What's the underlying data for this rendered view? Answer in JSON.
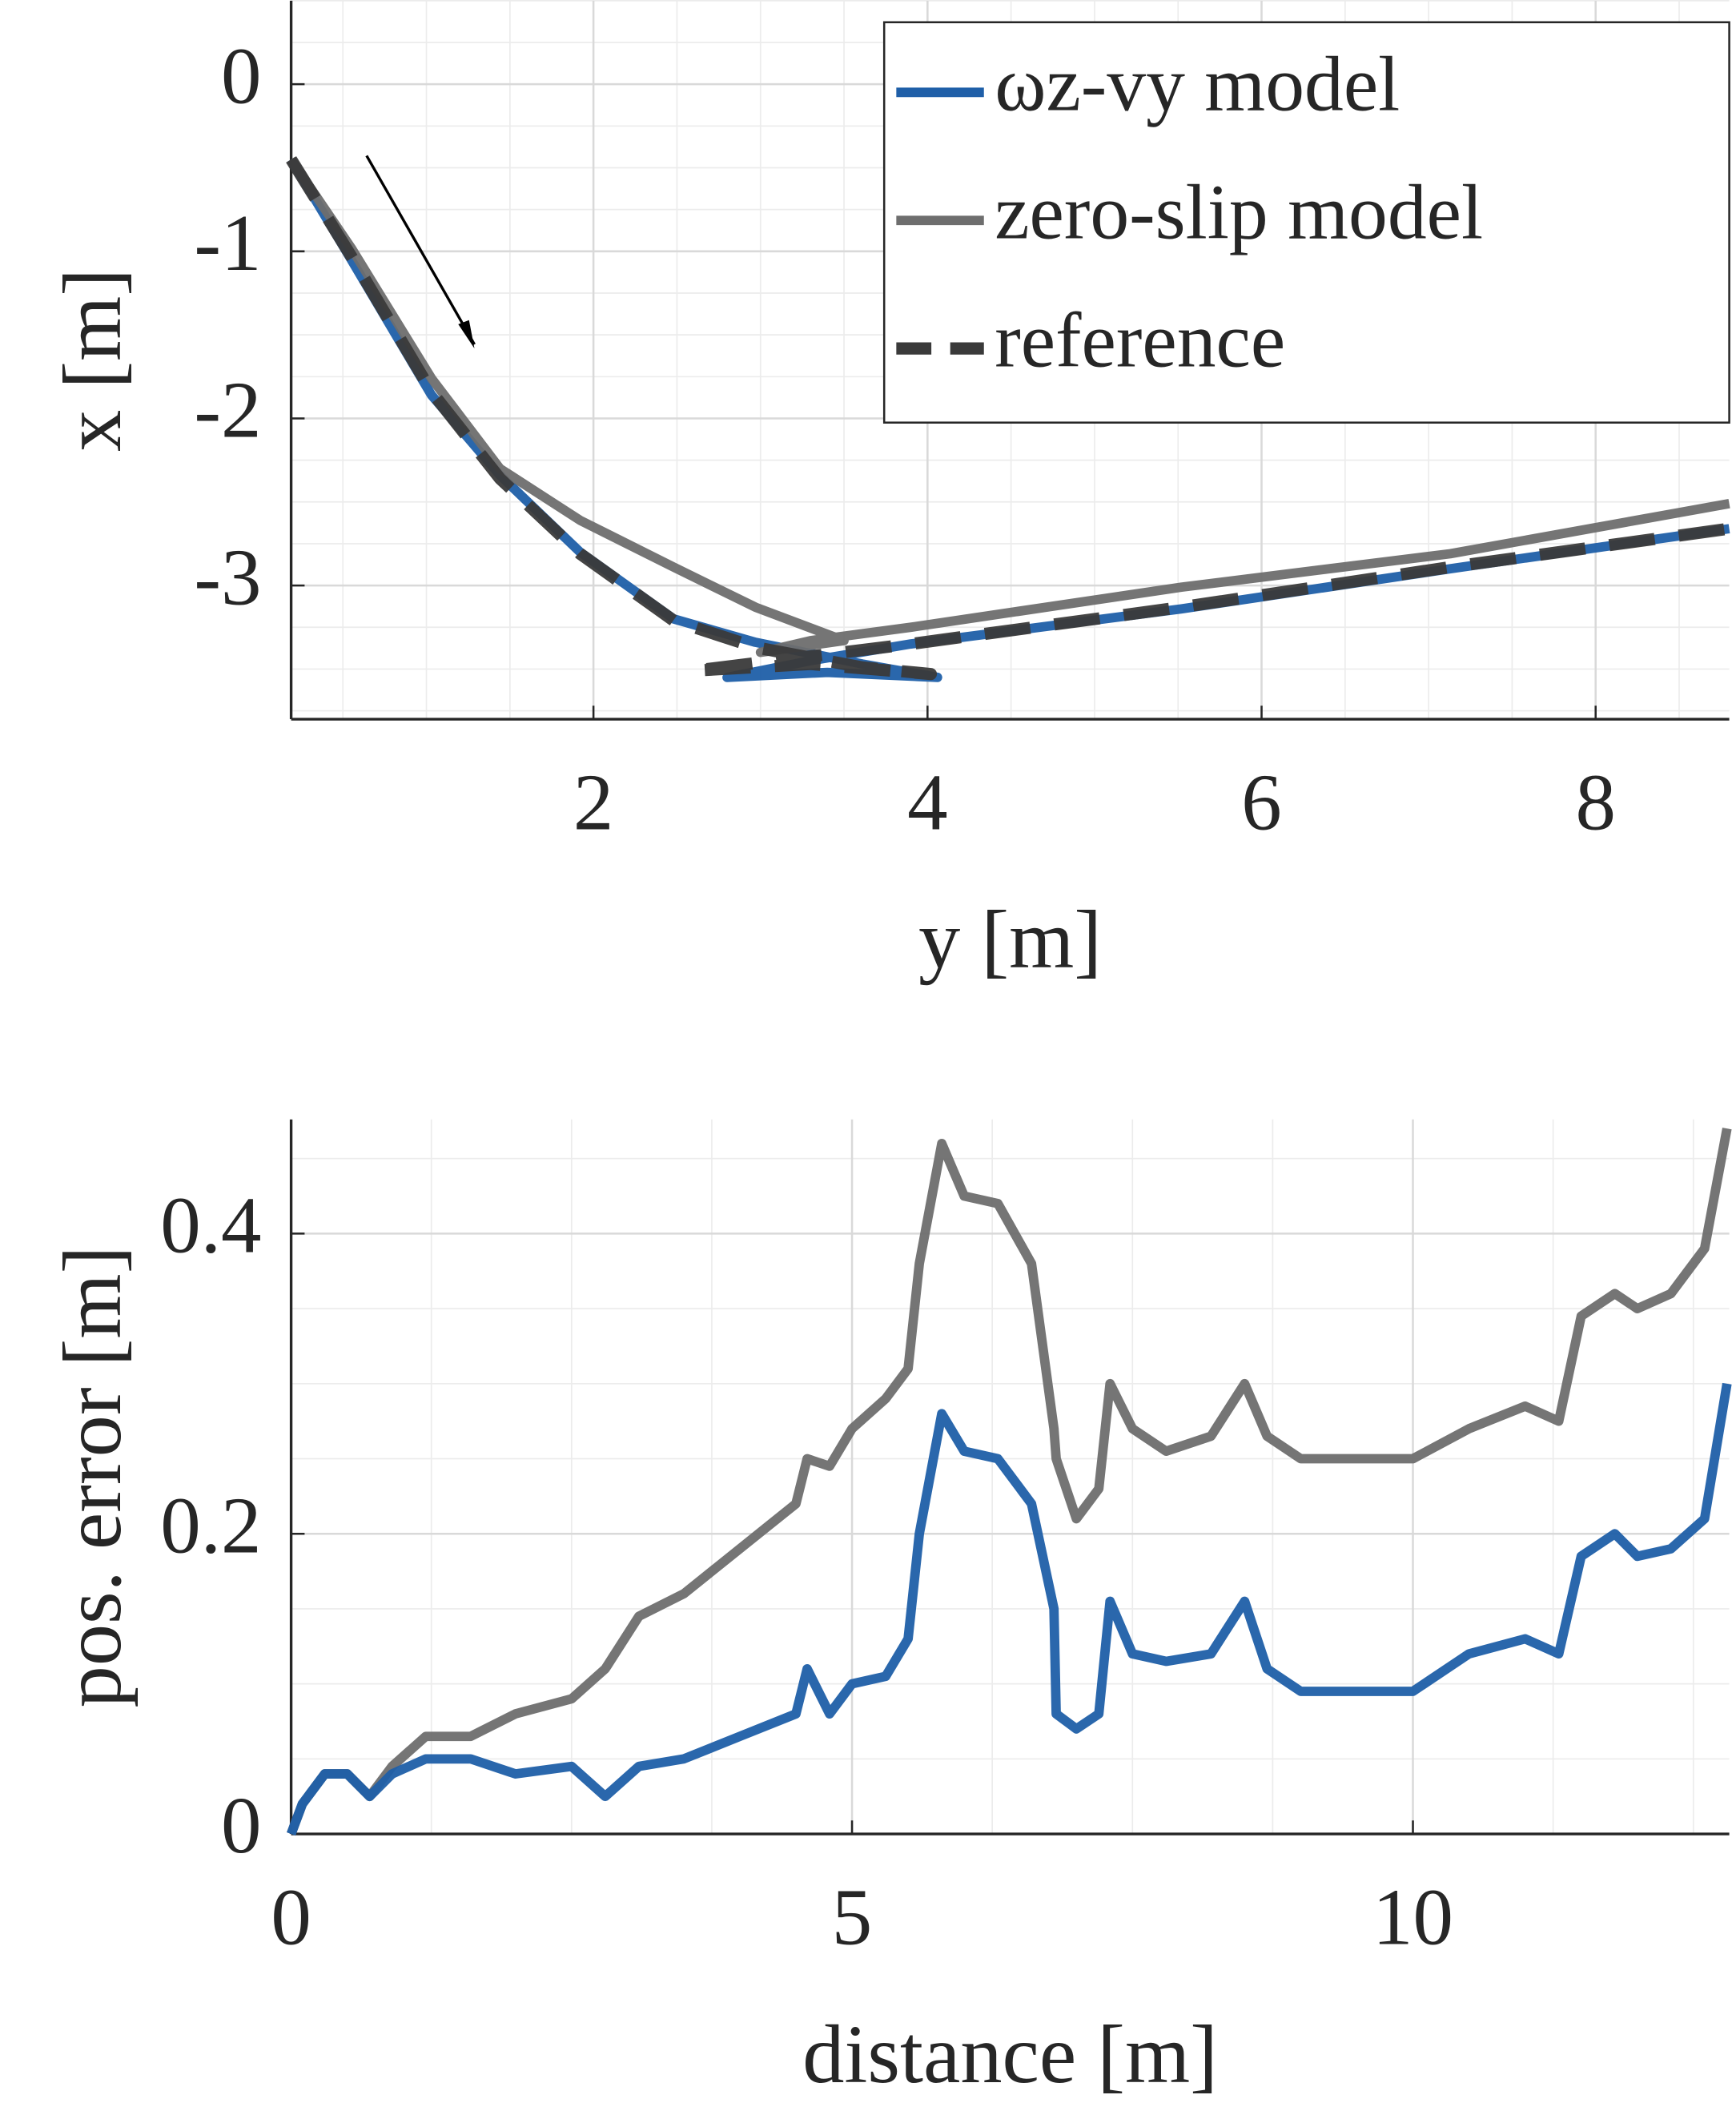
{
  "chart_data": [
    {
      "type": "line",
      "xlabel": "y [m]",
      "ylabel": "x [m]",
      "xlim": [
        0.19,
        8.8
      ],
      "ylim": [
        -3.8,
        0.5
      ],
      "xticks": [
        2,
        4,
        6,
        8
      ],
      "yticks": [
        0,
        -1,
        -2,
        -3
      ],
      "grid": true,
      "legend": "northeast",
      "series": [
        {
          "name": "ωz-vy model",
          "color": "#1f5fa8",
          "linestyle": "solid",
          "x": [
            0.19,
            0.55,
            1.03,
            1.44,
            1.92,
            2.48,
            2.97,
            3.61,
            4.06,
            3.4,
            2.8,
            3.3,
            3.9,
            5.52,
            7.13,
            8.8
          ],
          "values": [
            -0.45,
            -1.05,
            -1.86,
            -2.34,
            -2.8,
            -3.2,
            -3.34,
            -3.47,
            -3.55,
            -3.52,
            -3.55,
            -3.45,
            -3.35,
            -3.14,
            -2.9,
            -2.66
          ]
        },
        {
          "name": "zero-slip model",
          "color": "#6e6e6e",
          "linestyle": "solid",
          "x": [
            0.19,
            0.55,
            1.03,
            1.44,
            1.92,
            2.48,
            2.97,
            3.5,
            3.0,
            3.3,
            3.9,
            5.52,
            7.13,
            8.8
          ],
          "values": [
            -0.45,
            -0.98,
            -1.76,
            -2.3,
            -2.61,
            -2.89,
            -3.13,
            -3.33,
            -3.4,
            -3.33,
            -3.25,
            -3.01,
            -2.81,
            -2.51
          ]
        },
        {
          "name": "reference",
          "color": "#3a3a3a",
          "linestyle": "dashed",
          "x": [
            0.19,
            0.55,
            1.03,
            1.44,
            1.92,
            2.48,
            2.97,
            3.61,
            4.02,
            3.3,
            2.6,
            3.9,
            5.52,
            7.13,
            8.8
          ],
          "values": [
            -0.45,
            -1.03,
            -1.84,
            -2.36,
            -2.81,
            -3.21,
            -3.37,
            -3.49,
            -3.53,
            -3.47,
            -3.51,
            -3.35,
            -3.13,
            -2.89,
            -2.66
          ]
        }
      ]
    },
    {
      "type": "line",
      "xlabel": "distance [m]",
      "ylabel": "pos. error [m]",
      "xlim": [
        0,
        12.82
      ],
      "ylim": [
        0,
        0.476
      ],
      "xticks": [
        0,
        5,
        10
      ],
      "yticks": [
        0,
        0.2,
        0.4
      ],
      "grid": true,
      "x": [
        0,
        0.1,
        0.3,
        0.5,
        0.7,
        0.9,
        1.2,
        1.6,
        2,
        2.5,
        2.8,
        3.1,
        3.5,
        4,
        4.5,
        4.6,
        4.8,
        5,
        5.3,
        5.5,
        5.6,
        5.8,
        6,
        6.3,
        6.6,
        6.8,
        6.82,
        7,
        7.2,
        7.3,
        7.5,
        7.8,
        8.2,
        8.5,
        8.7,
        9,
        9.5,
        10,
        10.5,
        11,
        11.3,
        11.5,
        11.8,
        12,
        12.3,
        12.6,
        12.8
      ],
      "series": [
        {
          "color": "#6e6e6e",
          "linestyle": "solid",
          "values": [
            0,
            0.02,
            0.04,
            0.04,
            0.025,
            0.045,
            0.065,
            0.065,
            0.08,
            0.09,
            0.11,
            0.145,
            0.16,
            0.19,
            0.22,
            0.25,
            0.245,
            0.27,
            0.29,
            0.31,
            0.38,
            0.46,
            0.425,
            0.42,
            0.38,
            0.27,
            0.25,
            0.21,
            0.23,
            0.3,
            0.27,
            0.255,
            0.265,
            0.3,
            0.265,
            0.25,
            0.25,
            0.25,
            0.27,
            0.285,
            0.275,
            0.345,
            0.36,
            0.35,
            0.36,
            0.39,
            0.47
          ]
        },
        {
          "color": "#1f5fa8",
          "linestyle": "solid",
          "values": [
            0,
            0.02,
            0.04,
            0.04,
            0.025,
            0.04,
            0.05,
            0.05,
            0.04,
            0.045,
            0.025,
            0.045,
            0.05,
            0.065,
            0.08,
            0.11,
            0.08,
            0.1,
            0.105,
            0.13,
            0.2,
            0.28,
            0.255,
            0.25,
            0.22,
            0.15,
            0.08,
            0.07,
            0.08,
            0.155,
            0.12,
            0.115,
            0.12,
            0.155,
            0.11,
            0.095,
            0.095,
            0.095,
            0.12,
            0.13,
            0.12,
            0.185,
            0.2,
            0.185,
            0.19,
            0.21,
            0.3
          ]
        }
      ]
    }
  ]
}
